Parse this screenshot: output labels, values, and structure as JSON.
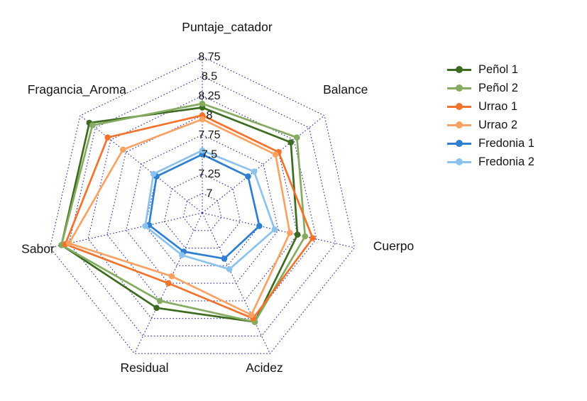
{
  "chart_data": {
    "type": "radar",
    "axes": [
      "Puntaje_catador",
      "Balance",
      "Cuerpo",
      "Acidez",
      "Residual",
      "Sabor",
      "Fragancia_Aroma"
    ],
    "tick_labels": [
      "8.75",
      "8.5",
      "8.25",
      "8",
      "7.75",
      "7.5",
      "7.25",
      "7"
    ],
    "axis_range": [
      6.75,
      8.75
    ],
    "grid": "dotted",
    "grid_color": "#2b2ba0",
    "legend_position": "right",
    "series": [
      {
        "name": "Peñol 1",
        "color": "#3d6b1f",
        "values": [
          8.1,
          8.2,
          8.0,
          8.3,
          8.1,
          8.6,
          8.6
        ]
      },
      {
        "name": "Peñol 2",
        "color": "#85ab60",
        "values": [
          8.15,
          8.3,
          8.1,
          8.3,
          8.0,
          8.6,
          8.55
        ]
      },
      {
        "name": "Urrao 1",
        "color": "#f4722c",
        "values": [
          8.0,
          8.0,
          8.2,
          8.25,
          7.75,
          8.55,
          8.3
        ]
      },
      {
        "name": "Urrao 2",
        "color": "#f9a263",
        "values": [
          7.95,
          7.95,
          7.9,
          8.2,
          7.65,
          8.5,
          8.05
        ]
      },
      {
        "name": "Fredonia 1",
        "color": "#2e7fd2",
        "values": [
          7.5,
          7.5,
          7.5,
          7.4,
          7.3,
          7.45,
          7.5
        ]
      },
      {
        "name": "Fredonia 2",
        "color": "#8cc3ee",
        "values": [
          7.55,
          7.6,
          7.7,
          7.55,
          7.35,
          7.5,
          7.55
        ]
      }
    ]
  }
}
